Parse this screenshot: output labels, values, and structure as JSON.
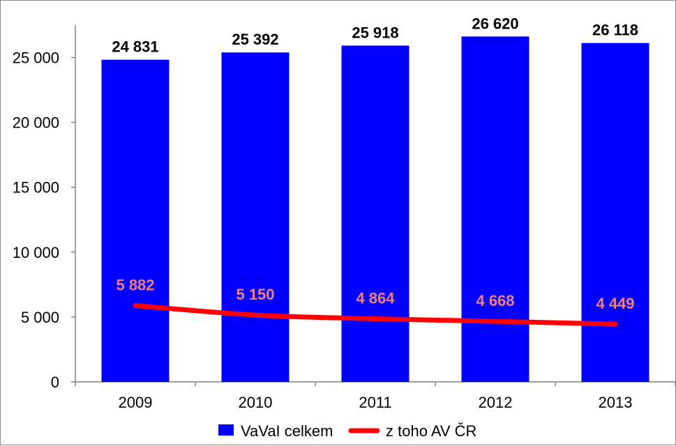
{
  "chart_data": {
    "type": "bar",
    "categories": [
      "2009",
      "2010",
      "2011",
      "2012",
      "2013"
    ],
    "series": [
      {
        "name": "VaVaI celkem",
        "kind": "bar",
        "color": "#0000ff",
        "values": [
          24831,
          25392,
          25918,
          26620,
          26118
        ],
        "labels": [
          "24 831",
          "25 392",
          "25 918",
          "26 620",
          "26 118"
        ]
      },
      {
        "name": "z toho AV ČR",
        "kind": "line",
        "color": "#ff0000",
        "label_color": "#f08080",
        "values": [
          5882,
          5150,
          4864,
          4668,
          4449
        ],
        "labels": [
          "5 882",
          "5 150",
          "4 864",
          "4 668",
          "4 449"
        ]
      }
    ],
    "ylim": [
      0,
      27500
    ],
    "yticks": [
      0,
      5000,
      10000,
      15000,
      20000,
      25000
    ],
    "ytick_labels": [
      "0",
      "5 000",
      "10 000",
      "15 000",
      "20 000",
      "25 000"
    ],
    "grid": false,
    "legend_position": "bottom"
  }
}
